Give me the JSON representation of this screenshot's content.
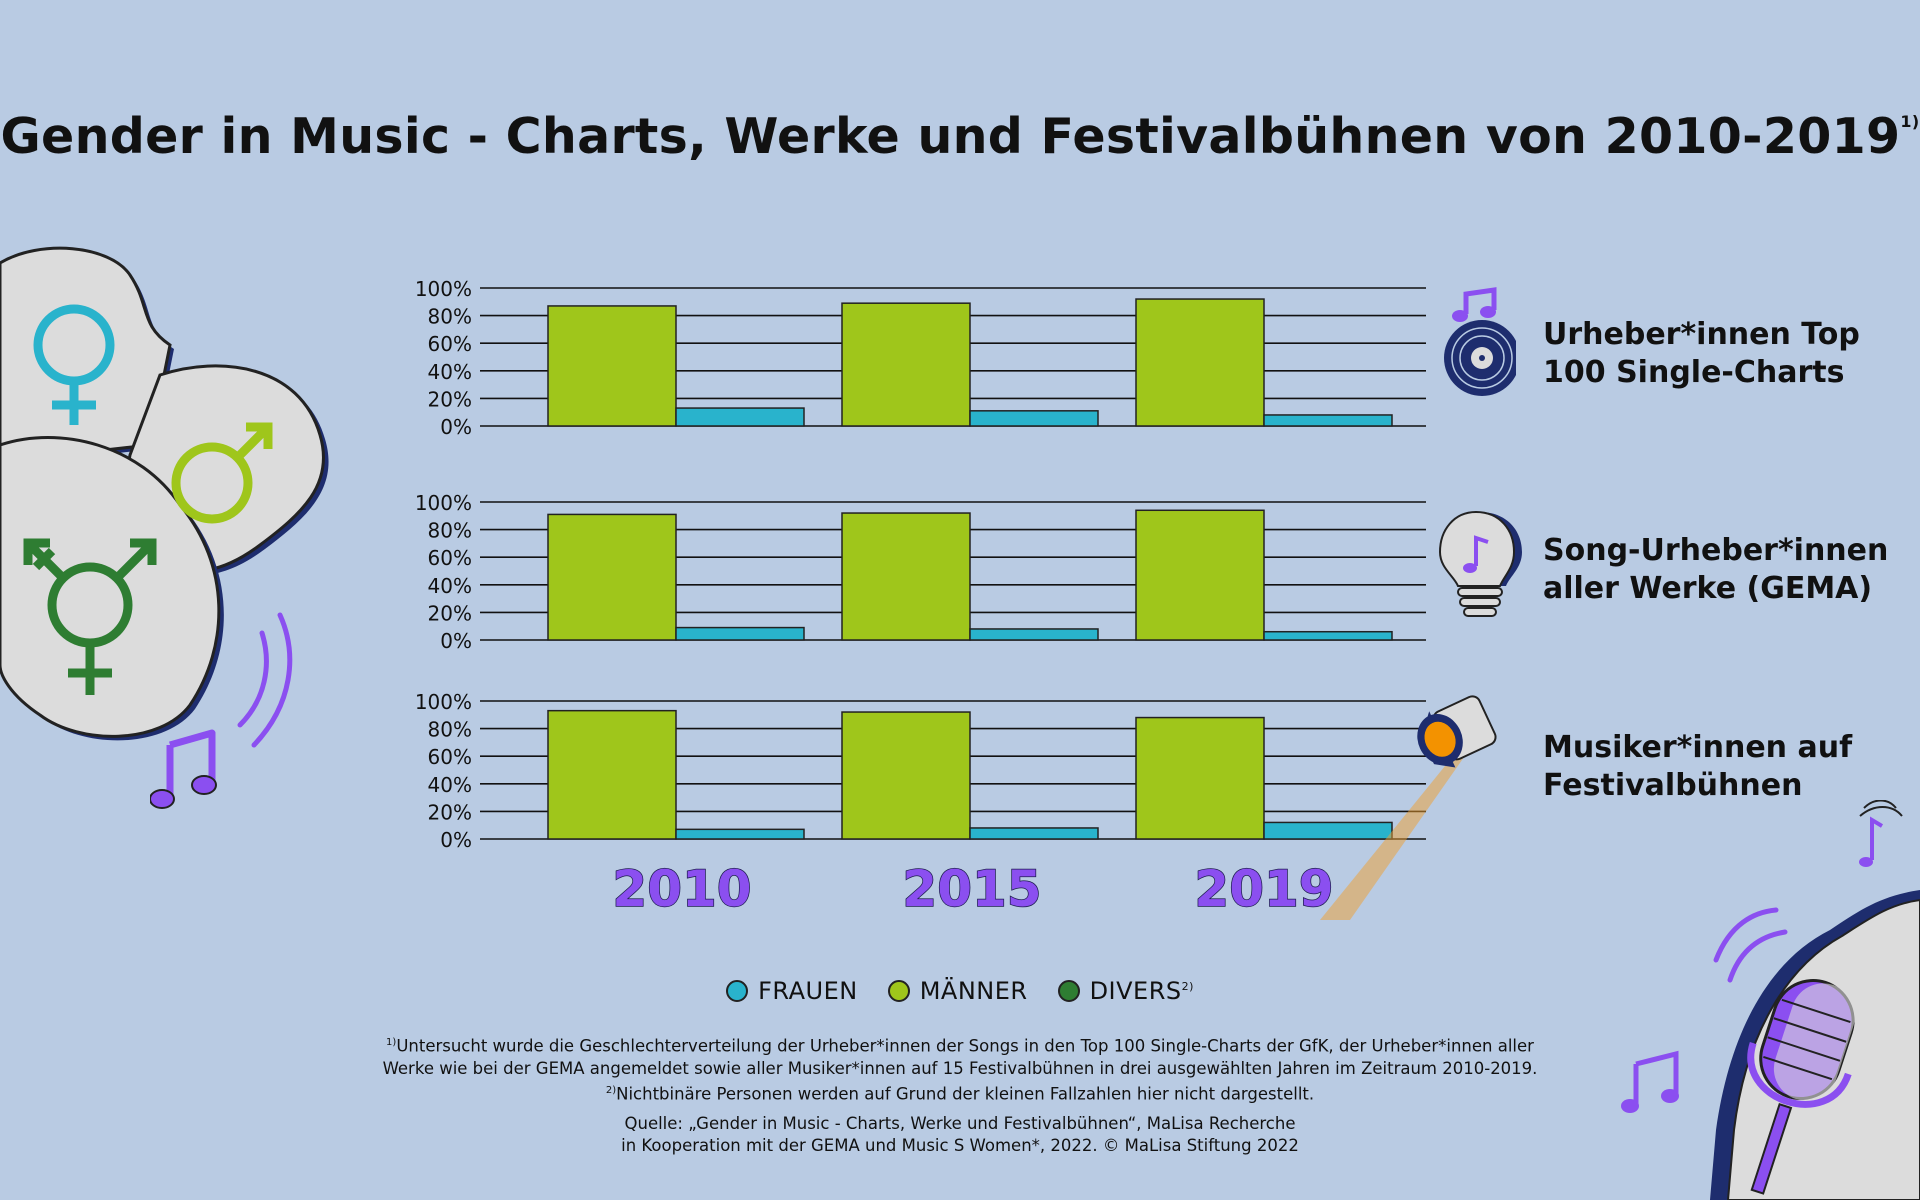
{
  "title": "Gender in Music - Charts, Werke und Festivalbühnen von 2010-2019",
  "title_footnote": "1)",
  "colors": {
    "background": "#b9cbe3",
    "frauen": "#29b3cc",
    "maenner": "#9fc61b",
    "divers": "#2e7d32",
    "accent": "#8b4ff0",
    "grid": "#111111"
  },
  "chart_data": [
    {
      "type": "bar",
      "title": "Urheber*innen Top 100 Single-Charts",
      "categories": [
        "2010",
        "2015",
        "2019"
      ],
      "series": [
        {
          "name": "MÄNNER",
          "values": [
            87,
            89,
            92
          ]
        },
        {
          "name": "FRAUEN",
          "values": [
            13,
            11,
            8
          ]
        }
      ],
      "ylim": [
        0,
        100
      ],
      "yticks": [
        "0%",
        "20%",
        "40%",
        "60%",
        "80%",
        "100%"
      ]
    },
    {
      "type": "bar",
      "title": "Song-Urheber*innen aller Werke (GEMA)",
      "categories": [
        "2010",
        "2015",
        "2019"
      ],
      "series": [
        {
          "name": "MÄNNER",
          "values": [
            91,
            92,
            94
          ]
        },
        {
          "name": "FRAUEN",
          "values": [
            9,
            8,
            6
          ]
        }
      ],
      "ylim": [
        0,
        100
      ],
      "yticks": [
        "0%",
        "20%",
        "40%",
        "60%",
        "80%",
        "100%"
      ]
    },
    {
      "type": "bar",
      "title": "Musiker*innen auf Festivalbühnen",
      "categories": [
        "2010",
        "2015",
        "2019"
      ],
      "series": [
        {
          "name": "MÄNNER",
          "values": [
            93,
            92,
            88
          ]
        },
        {
          "name": "FRAUEN",
          "values": [
            7,
            8,
            12
          ]
        }
      ],
      "ylim": [
        0,
        100
      ],
      "yticks": [
        "0%",
        "20%",
        "40%",
        "60%",
        "80%",
        "100%"
      ]
    }
  ],
  "panel_labels": [
    [
      "Urheber*innen Top",
      "100 Single-Charts"
    ],
    [
      "Song-Urheber*innen",
      "aller Werke (GEMA)"
    ],
    [
      "Musiker*innen auf",
      "Festivalbühnen"
    ]
  ],
  "years": [
    "2010",
    "2015",
    "2019"
  ],
  "legend": {
    "frauen": "FRAUEN",
    "maenner": "MÄNNER",
    "divers": "DIVERS",
    "divers_footnote": "2)"
  },
  "footnotes": {
    "note1_marker": "1)",
    "note1_line1": "Untersucht wurde die Geschlechterverteilung der Urheber*innen der Songs in den Top 100 Single-Charts der GfK, der Urheber*innen aller",
    "note1_line2": "Werke wie bei der GEMA angemeldet sowie aller Musiker*innen auf 15 Festivalbühnen in drei ausgewählten Jahren im Zeitraum 2010-2019.",
    "note2_marker": "2)",
    "note2_text": "Nichtbinäre Personen werden auf Grund der kleinen Fallzahlen hier nicht dargestellt.",
    "source_line1": "Quelle: „Gender in Music - Charts, Werke und Festivalbühnen“, MaLisa Recherche",
    "source_line2": "in Kooperation mit der GEMA und Music S Women*, 2022. © MaLisa Stiftung 2022"
  }
}
